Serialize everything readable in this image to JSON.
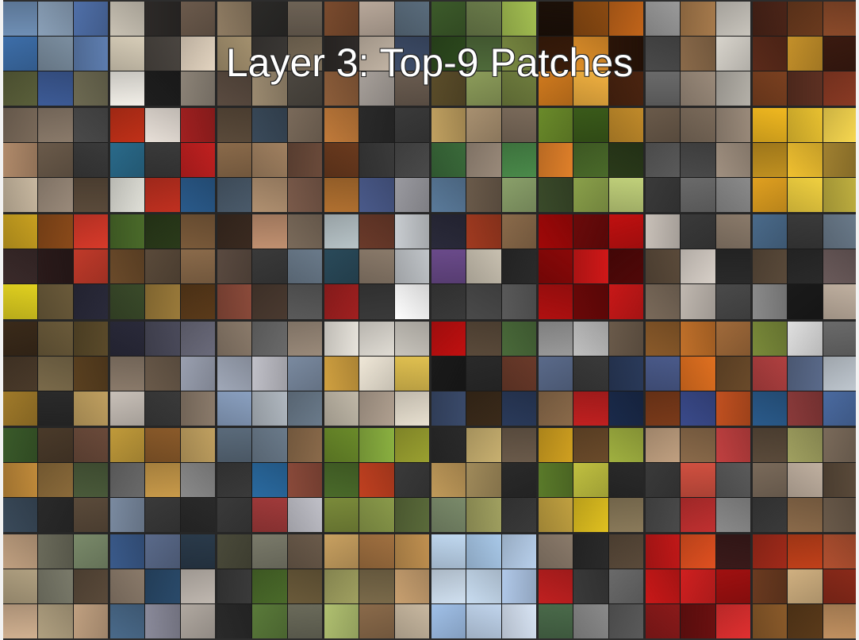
{
  "title": "Layer 3: Top-9 Patches",
  "units": [
    [
      "#6f8fb5",
      "#8aa0b8",
      "#4f6fa8",
      "#3d6ea9",
      "#7b8ea0",
      "#5e7eb0",
      "#5a5f3a",
      "#3d5b96",
      "#6d6a52"
    ],
    [
      "#c9c2b4",
      "#2d2a28",
      "#6b5a4c",
      "#d7cdb8",
      "#4a4540",
      "#e3d4c0",
      "#f2efe8",
      "#1e1e1e",
      "#8c8377"
    ],
    [
      "#8f7c63",
      "#2b2a28",
      "#6d6255",
      "#a3906e",
      "#3b3835",
      "#7a6c58",
      "#5a4b40",
      "#9b8a70",
      "#4c4740"
    ],
    [
      "#7a4b2e",
      "#b8a89a",
      "#5a6c7c",
      "#2e2a28",
      "#c3b5a5",
      "#3f4e6a",
      "#8c5d3a",
      "#a7a09a",
      "#6a5c50"
    ],
    [
      "#3c5a2a",
      "#6a7b4a",
      "#a4c052",
      "#2d4a1e",
      "#4f6a3a",
      "#7a8a42",
      "#5b4d2a",
      "#8c9c5a",
      "#6f7d3e"
    ],
    [
      "#1c1008",
      "#8a4a12",
      "#c0641a",
      "#3a1c0a",
      "#e0902a",
      "#2a1408",
      "#d07a1e",
      "#f0b040",
      "#4a2410"
    ],
    [
      "#9a9a9a",
      "#a67a4c",
      "#c8c4bc",
      "#4a4a4a",
      "#8a6a4a",
      "#d8d4cc",
      "#6a6a6a",
      "#9a8a7a",
      "#b4b0a8"
    ],
    [
      "#4a2418",
      "#6a3a1e",
      "#8a4a2a",
      "#5a2a1a",
      "#c4902a",
      "#3a1a10",
      "#7a4020",
      "#5c3022",
      "#8a3a24"
    ],
    [
      "#7a6a5a",
      "#8a7a6a",
      "#4a4a4a",
      "#b08a6a",
      "#6a5a4a",
      "#3a3a3a",
      "#c8b8a0",
      "#9a8a7a",
      "#5a4a3a"
    ],
    [
      "#c03018",
      "#e8e0d8",
      "#a02020",
      "#2a6a8a",
      "#3a3a3a",
      "#c02020",
      "#e0e0d8",
      "#c03020",
      "#2a5a8a"
    ],
    [
      "#5a4a3a",
      "#3a4a5a",
      "#7a6a5a",
      "#8a6a4a",
      "#a08060",
      "#6a4a3a",
      "#4a5a6a",
      "#b09070",
      "#7a5a4a"
    ],
    [
      "#c07a3a",
      "#2a2a2a",
      "#3a3a3a",
      "#6a3a1e",
      "#3a3a3a",
      "#4a4a4a",
      "#b07030",
      "#4a5a8a",
      "#9a9aa0"
    ],
    [
      "#c0a060",
      "#a89070",
      "#7a6a5a",
      "#3a6a3a",
      "#9a8a7a",
      "#4a8a4a",
      "#5a7a9a",
      "#6a5a4a",
      "#8aa06a"
    ],
    [
      "#6a8a2a",
      "#3a5a1a",
      "#c08a2a",
      "#e0802a",
      "#4a6a2a",
      "#2a3a1a",
      "#3a4a2a",
      "#8aa04a",
      "#c0d07a"
    ],
    [
      "#6a5a4a",
      "#7a6a5a",
      "#9a8a7a",
      "#5a5a5a",
      "#4a4a4a",
      "#a09080",
      "#3a3a3a",
      "#6a6a6a",
      "#8a8a8a"
    ],
    [
      "#f0b820",
      "#e8c030",
      "#f8d850",
      "#c09020",
      "#f0c030",
      "#a08030",
      "#e0a020",
      "#f0d040",
      "#c0b040"
    ],
    [
      "#c8a020",
      "#8a4a1a",
      "#d83a2a",
      "#3a2a2a",
      "#2a1a1a",
      "#c03a2a",
      "#e0d020",
      "#6a5a3a",
      "#2a2a3a"
    ],
    [
      "#4a6a2a",
      "#2a3a1a",
      "#7a5a3a",
      "#6a4a2a",
      "#5a4a3a",
      "#8a6a4a",
      "#3a4a2a",
      "#9a7a3a",
      "#5a3a1a"
    ],
    [
      "#3a2a20",
      "#c09070",
      "#7a6a5a",
      "#5a4a40",
      "#3a3a3a",
      "#6a7a8a",
      "#8a4a3a",
      "#4a3a30",
      "#5a5a5a"
    ],
    [
      "#b8c4c8",
      "#6a3a2a",
      "#c8ccd0",
      "#2a4a5a",
      "#8a7a6a",
      "#c0c4c8",
      "#a02020",
      "#3a3a3a",
      "#ffffff"
    ],
    [
      "#2a2a3a",
      "#a03a20",
      "#8a6a4a",
      "#6a4a8a",
      "#c8c0b0",
      "#2a2a2a",
      "#3a3a3a",
      "#4a4a4a",
      "#5a5a5a"
    ],
    [
      "#a00808",
      "#6a0a0a",
      "#c01010",
      "#8a0808",
      "#d01818",
      "#500808",
      "#b01010",
      "#6a0808",
      "#c81818"
    ],
    [
      "#c8c0b8",
      "#3a3a3a",
      "#8a7a6a",
      "#5a4a3a",
      "#d8d0c8",
      "#2a2a2a",
      "#7a6a5a",
      "#c0b8b0",
      "#4a4a4a"
    ],
    [
      "#4a6a8a",
      "#3a3a3a",
      "#6a7a8a",
      "#5a4a3a",
      "#2a2a2a",
      "#6a5a5a",
      "#8a8a8a",
      "#1a1a1a",
      "#c0b0a0"
    ],
    [
      "#3a2a1a",
      "#6a5a3a",
      "#5a4a2a",
      "#4a3a2a",
      "#7a6a4a",
      "#5a4020",
      "#a07a2a",
      "#2a2a2a",
      "#c0a060"
    ],
    [
      "#2a2a3a",
      "#4a4a5a",
      "#6a6a7a",
      "#8a7a6a",
      "#6a5a4a",
      "#9aa0b0",
      "#c8c0b8",
      "#3a3a3a",
      "#8a7a6a"
    ],
    [
      "#8a7a6a",
      "#6a6a6a",
      "#9a8a7a",
      "#a0a8b8",
      "#c0c0c8",
      "#7a8aa0",
      "#8aa0c0",
      "#b0b8c0",
      "#6a7a8a"
    ],
    [
      "#e8e4dc",
      "#e0dcd4",
      "#c8c4bc",
      "#d0a040",
      "#f0e8d8",
      "#e0c050",
      "#c0b8a8",
      "#b0a090",
      "#e8e0d0"
    ],
    [
      "#c01010",
      "#5a4a3a",
      "#4a6a3a",
      "#1a1a1a",
      "#2a2a2a",
      "#6a3a2a",
      "#3a4a6a",
      "#3a2a1a",
      "#2a3a5a"
    ],
    [
      "#9a9a9a",
      "#c0c0c0",
      "#6a5a4a",
      "#5a6a8a",
      "#3a3a3a",
      "#2a3a5a",
      "#8a6a4a",
      "#c02020",
      "#1a2a4a"
    ],
    [
      "#8a5a2a",
      "#c0702a",
      "#a06a3a",
      "#4a5a8a",
      "#e07020",
      "#6a4a2a",
      "#7a3a1a",
      "#3a4a8a",
      "#c05020"
    ],
    [
      "#7a8a3a",
      "#e0e0e0",
      "#6a6a6a",
      "#b04040",
      "#5a6a8a",
      "#c0c8d0",
      "#2a5a8a",
      "#8a3a3a",
      "#4a6aa0"
    ],
    [
      "#3a5a2a",
      "#4a3a2a",
      "#6a4a3a",
      "#c08a3a",
      "#8a6a3a",
      "#4a5a3a",
      "#3a4a5a",
      "#2a2a2a",
      "#5a4a3a"
    ],
    [
      "#c09a3a",
      "#8a5a2a",
      "#c0a060",
      "#6a6a6a",
      "#c89a4a",
      "#8a8a8a",
      "#7a8aa0",
      "#3a3a3a",
      "#2a2a2a"
    ],
    [
      "#5a6a7a",
      "#6a7a8a",
      "#8a6a4a",
      "#3a3a3a",
      "#2a6aa0",
      "#8a4a3a",
      "#3a3a3a",
      "#a03a3a",
      "#c0c0c8"
    ],
    [
      "#6a8a2a",
      "#8ab040",
      "#9aa030",
      "#4a6a2a",
      "#c04020",
      "#3a3a3a",
      "#7a8a3a",
      "#8a9a4a",
      "#5a6a3a"
    ],
    [
      "#2a2a2a",
      "#c8b070",
      "#6a5a4a",
      "#c09a5a",
      "#a08a5a",
      "#2a2a2a",
      "#7a8a6a",
      "#a0a060",
      "#3a3a3a"
    ],
    [
      "#d0a020",
      "#6a4a2a",
      "#a0b040",
      "#5a7a2a",
      "#c0c040",
      "#2a2a2a",
      "#c0a040",
      "#e0c020",
      "#8a7a5a"
    ],
    [
      "#c0a080",
      "#8a6a4a",
      "#c04040",
      "#3a3a3a",
      "#d05040",
      "#5a5a5a",
      "#4a4a4a",
      "#c03030",
      "#8a8a8a"
    ],
    [
      "#5a4a3a",
      "#a0a060",
      "#7a6a5a",
      "#7a6a5a",
      "#c0b0a0",
      "#5a4a3a",
      "#3a3a3a",
      "#8a6a4a",
      "#6a5a4a"
    ],
    [
      "#c0a080",
      "#6a6a5a",
      "#7a8a6a",
      "#b0a080",
      "#7a7a6a",
      "#5a4a3a",
      "#d0b090",
      "#b0a080",
      "#c0a080"
    ],
    [
      "#3a5a8a",
      "#5a6a8a",
      "#2a3a4a",
      "#8a7a6a",
      "#2a4a6a",
      "#c0b8b0",
      "#4a6a8a",
      "#8a8a9a",
      "#b0a8a0"
    ],
    [
      "#4a4a3a",
      "#7a7a6a",
      "#6a5a4a",
      "#3a3a3a",
      "#4a6a2a",
      "#6a5a3a",
      "#2a2a2a",
      "#5a7a3a",
      "#6a6a5a"
    ],
    [
      "#c8a060",
      "#a07040",
      "#c09050",
      "#a0a060",
      "#7a6a4a",
      "#c8a070",
      "#b0c070",
      "#8a6a4a",
      "#c8b8a0"
    ],
    [
      "#c0d8f0",
      "#a8c8e8",
      "#b8d0ec",
      "#d0e0f0",
      "#c8dcf0",
      "#b0c8e8",
      "#a0c0e8",
      "#c0d4ec",
      "#d8e4f4"
    ],
    [
      "#8a7a6a",
      "#2a2a2a",
      "#5a4a3a",
      "#c02020",
      "#3a3a3a",
      "#6a6a6a",
      "#4a6a4a",
      "#8a8a8a",
      "#5a5a5a"
    ],
    [
      "#c01818",
      "#e05020",
      "#3a1a1a",
      "#c81818",
      "#d02020",
      "#a01010",
      "#8a1a1a",
      "#6a1010",
      "#e03030"
    ],
    [
      "#a02a1a",
      "#c0401a",
      "#b05030",
      "#6a3a20",
      "#d0b080",
      "#8a2a1a",
      "#8a5a2a",
      "#5a3a1a",
      "#c09060"
    ]
  ]
}
